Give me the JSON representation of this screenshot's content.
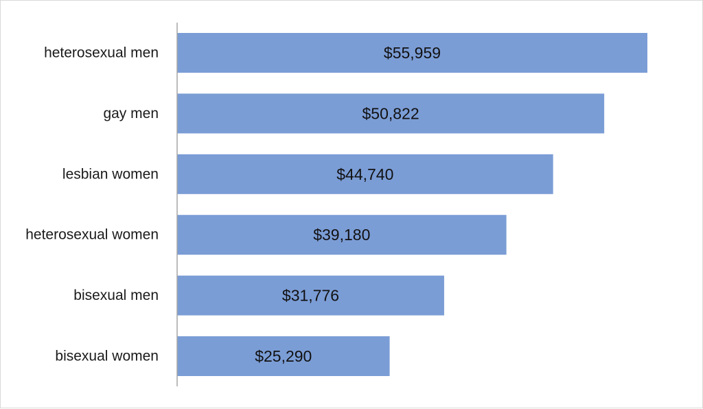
{
  "chart_data": {
    "type": "bar",
    "orientation": "horizontal",
    "categories": [
      "heterosexual men",
      "gay men",
      "lesbian women",
      "heterosexual women",
      "bisexual men",
      "bisexual women"
    ],
    "values": [
      55959,
      50822,
      44740,
      39180,
      31776,
      25290
    ],
    "data_labels": [
      "$55,959",
      "$50,822",
      "$44,740",
      "$39,180",
      "$31,776",
      "$25,290"
    ],
    "title": "",
    "xlabel": "",
    "ylabel": "",
    "grid": false,
    "legend": "none",
    "bar_color": "#7b9dd6",
    "axis_color": "#a6a6a6"
  }
}
